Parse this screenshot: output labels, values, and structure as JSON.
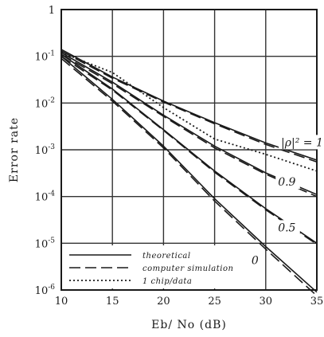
{
  "chart_data": {
    "type": "line",
    "xlabel": "Eb/ No (dB)",
    "ylabel": "Error rate",
    "xlim": [
      10,
      35
    ],
    "ylim_log10": [
      -6,
      0
    ],
    "yscale": "log",
    "grid": true,
    "x_ticks": [
      10,
      15,
      20,
      25,
      30,
      35
    ],
    "x_tick_labels": [
      "10",
      "15",
      "20",
      "25",
      "30",
      "35"
    ],
    "y_ticks_log10": [
      0,
      -1,
      -2,
      -3,
      -4,
      -5,
      -6
    ],
    "y_tick_labels": [
      {
        "base": "1",
        "exp": ""
      },
      {
        "base": "10",
        "exp": "-1"
      },
      {
        "base": "10",
        "exp": "-2"
      },
      {
        "base": "10",
        "exp": "-3"
      },
      {
        "base": "10",
        "exp": "-4"
      },
      {
        "base": "10",
        "exp": "-5"
      },
      {
        "base": "10",
        "exp": "-6"
      }
    ],
    "legend": {
      "placement": "bottom-left",
      "entries": [
        {
          "label": "theoretical",
          "style": "solid"
        },
        {
          "label": "computer simulation",
          "style": "dashed"
        },
        {
          "label": "1 chip/data",
          "style": "dotted"
        }
      ]
    },
    "curve_labels": [
      {
        "text": "|ρ|² = 1",
        "x": 31.5,
        "y": 0.0012
      },
      {
        "text": "0.9",
        "x": 31.2,
        "y": 0.00017
      },
      {
        "text": "0.5",
        "x": 31.2,
        "y": 1.8e-05
      },
      {
        "text": "0",
        "x": 28.6,
        "y": 3.6e-06
      }
    ],
    "series": [
      {
        "label": "|ρ|² = 1",
        "style": "solid",
        "x": [
          10,
          15,
          20,
          25,
          30,
          35
        ],
        "y": [
          0.14,
          0.036,
          0.011,
          0.0038,
          0.0014,
          0.0006
        ]
      },
      {
        "label": "|ρ|² = 1",
        "style": "dashed",
        "x": [
          10,
          15,
          20,
          25,
          30,
          35
        ],
        "y": [
          0.13,
          0.034,
          0.0105,
          0.0036,
          0.0013,
          0.00055
        ]
      },
      {
        "label": "|ρ|² = 1",
        "style": "dotted",
        "x": [
          10,
          15,
          20,
          25,
          30,
          35
        ],
        "y": [
          0.12,
          0.045,
          0.008,
          0.0017,
          0.0008,
          0.00035
        ]
      },
      {
        "label": "0.9",
        "style": "solid",
        "x": [
          10,
          15,
          20,
          25,
          30,
          35
        ],
        "y": [
          0.12,
          0.028,
          0.0055,
          0.0012,
          0.00032,
          0.00011
        ]
      },
      {
        "label": "0.9",
        "style": "dashed",
        "x": [
          10,
          15,
          20,
          25,
          30,
          35
        ],
        "y": [
          0.11,
          0.026,
          0.0052,
          0.0011,
          0.0003,
          0.0001
        ]
      },
      {
        "label": "0.5",
        "style": "solid",
        "x": [
          10,
          15,
          20,
          25,
          30,
          35
        ],
        "y": [
          0.11,
          0.02,
          0.0027,
          0.00035,
          5.5e-05,
          1e-05
        ]
      },
      {
        "label": "0.5",
        "style": "dashed",
        "x": [
          10,
          15,
          20,
          25,
          30,
          35
        ],
        "y": [
          0.1,
          0.019,
          0.0026,
          0.00033,
          5.2e-05,
          9.5e-06
        ]
      },
      {
        "label": "0",
        "style": "solid",
        "x": [
          10,
          15,
          20,
          25,
          30,
          35
        ],
        "y": [
          0.1,
          0.012,
          0.0012,
          9e-05,
          8.5e-06,
          9e-07
        ]
      },
      {
        "label": "0",
        "style": "dashed",
        "x": [
          10,
          15,
          20,
          25,
          30,
          35
        ],
        "y": [
          0.09,
          0.011,
          0.0011,
          8e-05,
          7.5e-06,
          7.5e-07
        ]
      }
    ]
  }
}
